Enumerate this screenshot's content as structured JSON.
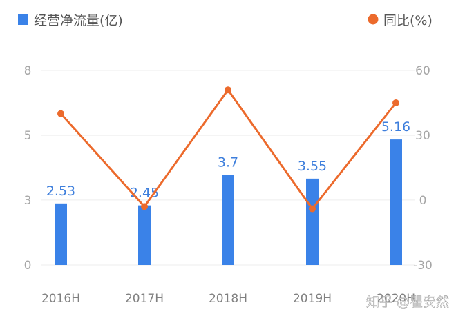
{
  "chart_data": {
    "type": "bar",
    "categories": [
      "2016H",
      "2017H",
      "2018H",
      "2019H",
      "2020H"
    ],
    "series": [
      {
        "name": "经营净流量(亿)",
        "type": "bar",
        "axis": "left",
        "values": [
          2.53,
          2.45,
          3.7,
          3.55,
          5.16
        ],
        "labels": [
          "2.53",
          "2.45",
          "3.7",
          "3.55",
          "5.16"
        ],
        "color": "#3a82e8"
      },
      {
        "name": "同比(%)",
        "type": "line",
        "axis": "right",
        "values": [
          40,
          -3,
          51,
          -4,
          45
        ],
        "color": "#ec6a2c"
      }
    ],
    "y_left": {
      "min": 0,
      "max": 8,
      "ticks": [
        "0",
        "3",
        "5",
        "8"
      ],
      "tick_values": [
        0,
        2.67,
        5.33,
        8
      ]
    },
    "y_right": {
      "min": -30,
      "max": 60,
      "ticks": [
        "-30",
        "0",
        "30",
        "60"
      ],
      "tick_values": [
        -30,
        0,
        30,
        60
      ]
    },
    "legend_position": "top",
    "grid": true
  },
  "watermark": "知乎 @瞿安然"
}
